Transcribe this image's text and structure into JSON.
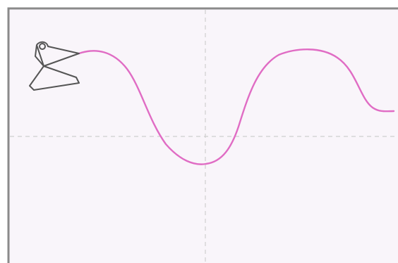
{
  "plot": {
    "background": "#f9f5fa",
    "frame_color": "#8a8a8a",
    "guide_color": "#cfcfcf",
    "curve_color": "#e06cc4",
    "pen_color": "#555555"
  }
}
